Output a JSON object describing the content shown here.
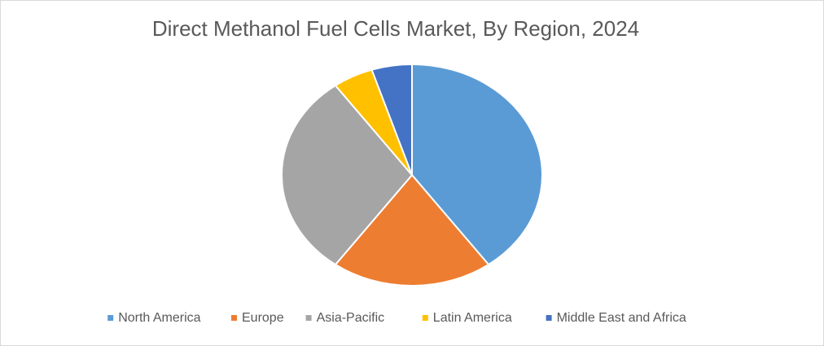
{
  "chart_data": {
    "type": "pie",
    "title": "Direct Methanol Fuel Cells Market, By Region, 2024",
    "categories": [
      "North America",
      "Europe",
      "Asia-Pacific",
      "Latin America",
      "Middle East and Africa"
    ],
    "values": [
      40,
      20,
      30,
      5,
      5
    ],
    "colors": [
      "#5b9bd5",
      "#ed7d31",
      "#a5a5a5",
      "#ffc000",
      "#4472c4"
    ],
    "legend": "bottom"
  }
}
